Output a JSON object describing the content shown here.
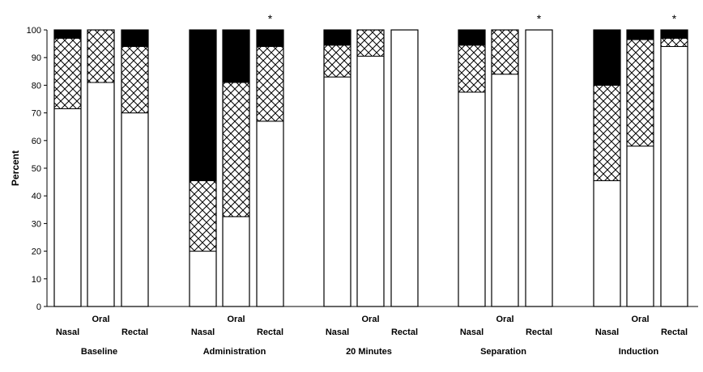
{
  "chart_data": {
    "type": "bar",
    "stacked": true,
    "ylabel": "Percent",
    "ylim": [
      0,
      100
    ],
    "yticks": [
      0,
      10,
      20,
      30,
      40,
      50,
      60,
      70,
      80,
      90,
      100
    ],
    "grid": false,
    "legend": "none",
    "series_colors": {
      "bottom": "#ffffff",
      "middle": "crosshatch",
      "top": "#000000"
    },
    "groups": [
      {
        "label": "Baseline",
        "bars": [
          {
            "route": "Nasal",
            "bottom": 71.5,
            "middle": 25.5,
            "top": 3.0,
            "star": ""
          },
          {
            "route": "Oral",
            "bottom": 81.0,
            "middle": 19.0,
            "top": 0.0,
            "star": ""
          },
          {
            "route": "Rectal",
            "bottom": 70.0,
            "middle": 24.0,
            "top": 6.0,
            "star": ""
          }
        ]
      },
      {
        "label": "Administration",
        "bars": [
          {
            "route": "Nasal",
            "bottom": 20.0,
            "middle": 25.5,
            "top": 54.5,
            "star": ""
          },
          {
            "route": "Oral",
            "bottom": 32.5,
            "middle": 48.5,
            "top": 19.0,
            "star": ""
          },
          {
            "route": "Rectal",
            "bottom": 67.0,
            "middle": 27.0,
            "top": 6.0,
            "star": "*"
          }
        ]
      },
      {
        "label": "20 Minutes",
        "bars": [
          {
            "route": "Nasal",
            "bottom": 83.0,
            "middle": 11.5,
            "top": 5.5,
            "star": ""
          },
          {
            "route": "Oral",
            "bottom": 90.5,
            "middle": 9.5,
            "top": 0.0,
            "star": ""
          },
          {
            "route": "Rectal",
            "bottom": 100.0,
            "middle": 0.0,
            "top": 0.0,
            "star": ""
          }
        ]
      },
      {
        "label": "Separation",
        "bars": [
          {
            "route": "Nasal",
            "bottom": 77.5,
            "middle": 17.0,
            "top": 5.5,
            "star": ""
          },
          {
            "route": "Oral",
            "bottom": 84.0,
            "middle": 16.0,
            "top": 0.0,
            "star": ""
          },
          {
            "route": "Rectal",
            "bottom": 100.0,
            "middle": 0.0,
            "top": 0.0,
            "star": "*"
          }
        ]
      },
      {
        "label": "Induction",
        "bars": [
          {
            "route": "Nasal",
            "bottom": 45.5,
            "middle": 34.5,
            "top": 20.0,
            "star": ""
          },
          {
            "route": "Oral",
            "bottom": 58.0,
            "middle": 38.5,
            "top": 3.5,
            "star": ""
          },
          {
            "route": "Rectal",
            "bottom": 94.0,
            "middle": 3.0,
            "top": 3.0,
            "star": "*"
          }
        ]
      }
    ]
  }
}
